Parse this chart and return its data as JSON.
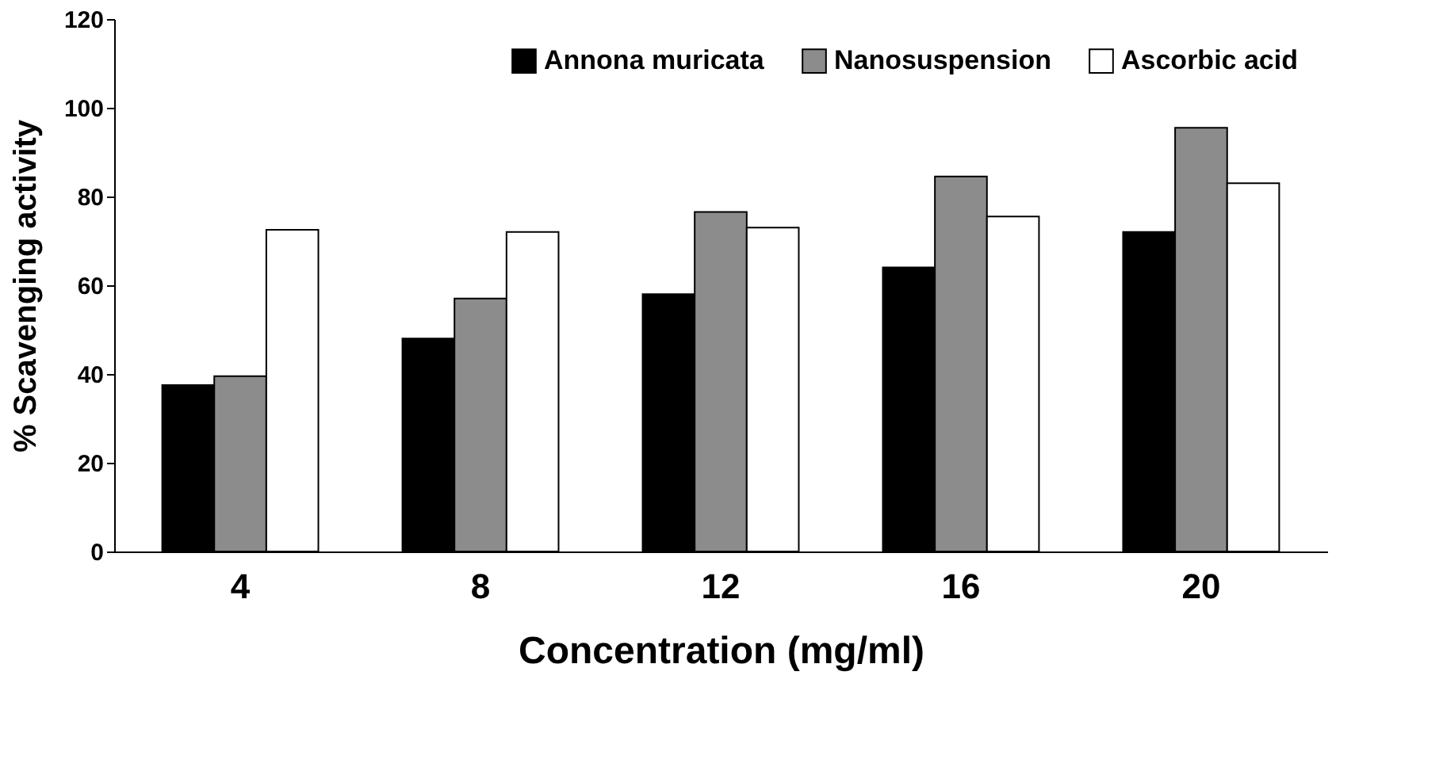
{
  "chart_data": {
    "type": "bar",
    "xlabel": "Concentration (mg/ml)",
    "ylabel": "% Scavenging activity",
    "categories": [
      "4",
      "8",
      "12",
      "16",
      "20"
    ],
    "series": [
      {
        "name": "Annona muricata",
        "color": "#000000",
        "values": [
          37.5,
          48,
          58,
          64,
          72
        ]
      },
      {
        "name": "Nanosuspension",
        "color": "#8c8c8c",
        "values": [
          39.5,
          57,
          76.5,
          84.5,
          95.5
        ]
      },
      {
        "name": "Ascorbic acid",
        "color": "#ffffff",
        "values": [
          72.5,
          72,
          73,
          75.5,
          83
        ]
      }
    ],
    "ylim": [
      0,
      120
    ],
    "yticks": [
      0,
      20,
      40,
      60,
      80,
      100,
      120
    ],
    "grid": false,
    "legend": "top right"
  }
}
